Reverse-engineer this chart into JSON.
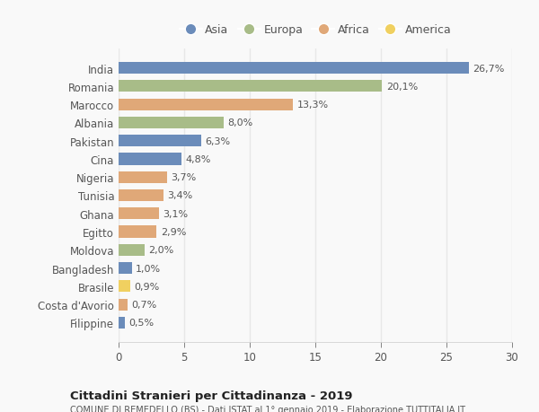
{
  "countries": [
    "India",
    "Romania",
    "Marocco",
    "Albania",
    "Pakistan",
    "Cina",
    "Nigeria",
    "Tunisia",
    "Ghana",
    "Egitto",
    "Moldova",
    "Bangladesh",
    "Brasile",
    "Costa d'Avorio",
    "Filippine"
  ],
  "values": [
    26.7,
    20.1,
    13.3,
    8.0,
    6.3,
    4.8,
    3.7,
    3.4,
    3.1,
    2.9,
    2.0,
    1.0,
    0.9,
    0.7,
    0.5
  ],
  "labels": [
    "26,7%",
    "20,1%",
    "13,3%",
    "8,0%",
    "6,3%",
    "4,8%",
    "3,7%",
    "3,4%",
    "3,1%",
    "2,9%",
    "2,0%",
    "1,0%",
    "0,9%",
    "0,7%",
    "0,5%"
  ],
  "continents": [
    "Asia",
    "Europa",
    "Africa",
    "Europa",
    "Asia",
    "Asia",
    "Africa",
    "Africa",
    "Africa",
    "Africa",
    "Europa",
    "Asia",
    "America",
    "Africa",
    "Asia"
  ],
  "colors": {
    "Asia": "#6b8cba",
    "Europa": "#a8bc88",
    "Africa": "#e0a878",
    "America": "#f0d060"
  },
  "legend_order": [
    "Asia",
    "Europa",
    "Africa",
    "America"
  ],
  "title": "Cittadini Stranieri per Cittadinanza - 2019",
  "subtitle": "COMUNE DI REMEDELLO (BS) - Dati ISTAT al 1° gennaio 2019 - Elaborazione TUTTITALIA.IT",
  "xlim": [
    0,
    30
  ],
  "xticks": [
    0,
    5,
    10,
    15,
    20,
    25,
    30
  ],
  "background_color": "#f9f9f9",
  "grid_color": "#e8e8e8",
  "bar_height": 0.65,
  "label_fontsize": 8.0,
  "ytick_fontsize": 8.5,
  "xtick_fontsize": 8.5
}
